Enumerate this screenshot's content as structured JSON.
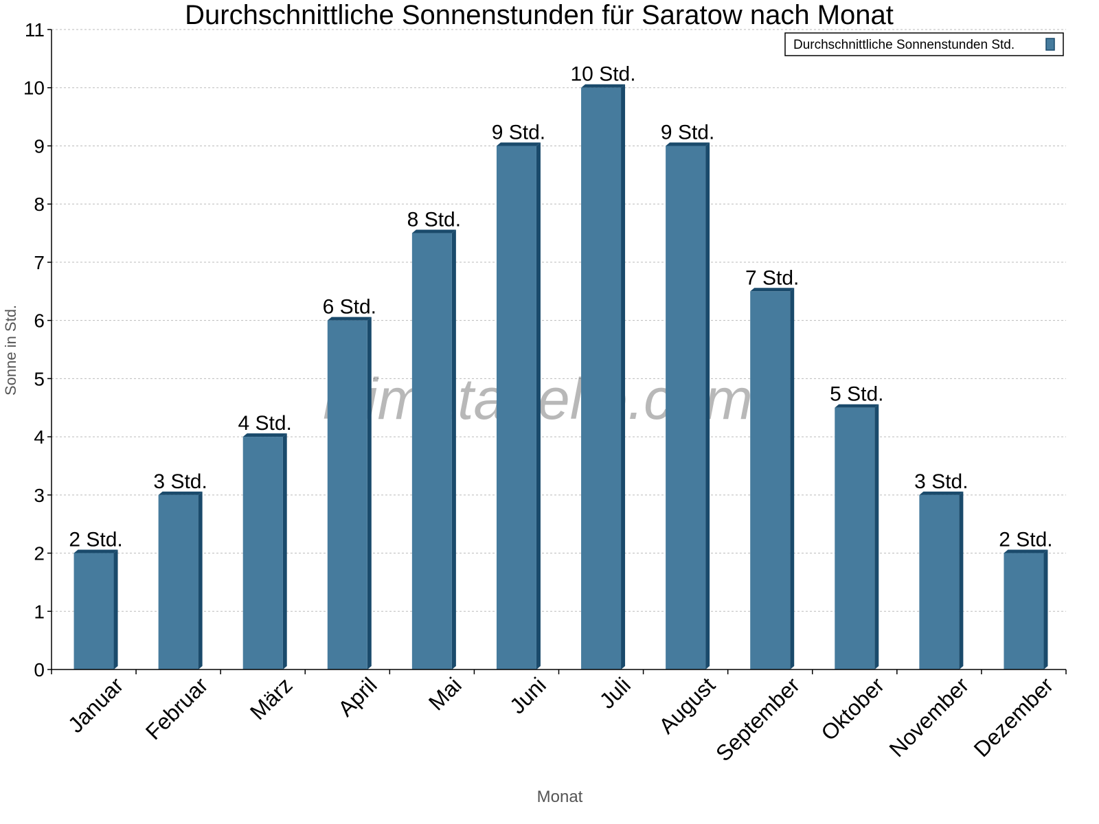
{
  "chart_data": {
    "type": "bar",
    "title": "Durchschnittliche Sonnenstunden für Saratow nach Monat",
    "xlabel": "Monat",
    "ylabel": "Sonne in Std.",
    "ylim": [
      0,
      11
    ],
    "yticks": [
      "0",
      "1",
      "2",
      "3",
      "4",
      "5",
      "6",
      "7",
      "8",
      "9",
      "10",
      "11"
    ],
    "grid": true,
    "legend_position": "top-right",
    "categories": [
      "Januar",
      "Februar",
      "März",
      "April",
      "Mai",
      "Juni",
      "Juli",
      "August",
      "September",
      "Oktober",
      "November",
      "Dezember"
    ],
    "series": [
      {
        "name": "Durchschnittliche Sonnenstunden Std.",
        "values": [
          2,
          3,
          4,
          6,
          7.5,
          9,
          10,
          9,
          6.5,
          4.5,
          3,
          2
        ],
        "labels": [
          "2 Std.",
          "3 Std.",
          "4 Std.",
          "6 Std.",
          "8 Std.",
          "9 Std.",
          "10 Std.",
          "9 Std.",
          "7 Std.",
          "5 Std.",
          "3 Std.",
          "2 Std."
        ],
        "color": "#467b9d",
        "side_color": "#1a4a6b"
      }
    ],
    "watermark": "klimatabelle.com"
  }
}
